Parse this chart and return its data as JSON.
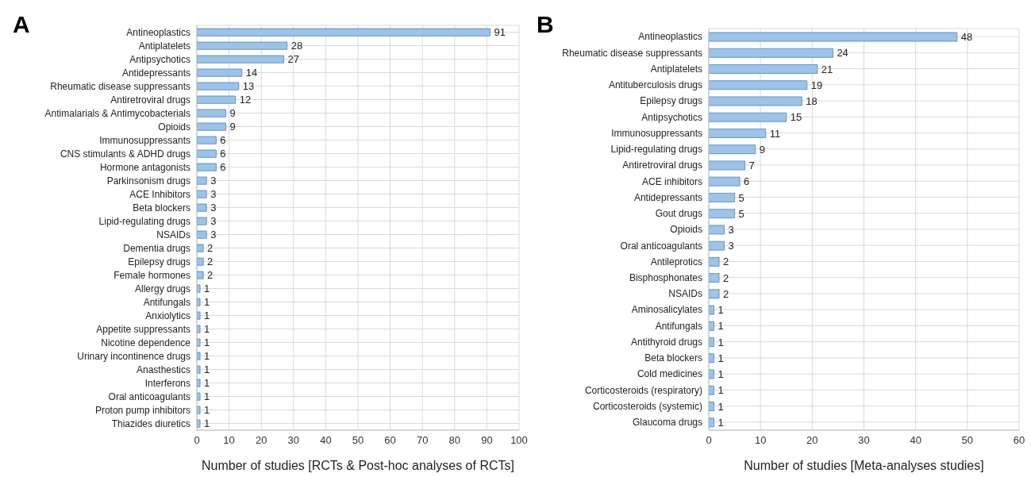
{
  "chart_data": [
    {
      "type": "bar",
      "title": "A",
      "orientation": "horizontal",
      "categories": [
        "Antineoplastics",
        "Antiplatelets",
        "Antipsychotics",
        "Antidepressants",
        "Rheumatic disease suppressants",
        "Antiretroviral drugs",
        "Antimalarials & Antimycobacterials",
        "Opioids",
        "Immunosuppressants",
        "CNS stimulants & ADHD drugs",
        "Hormone antagonists",
        "Parkinsonism drugs",
        "ACE Inhibitors",
        "Beta blockers",
        "Lipid-regulating drugs",
        "NSAIDs",
        "Dementia drugs",
        "Epilepsy drugs",
        "Female hormones",
        "Allergy drugs",
        "Antifungals",
        "Anxiolytics",
        "Appetite suppressants",
        "Nicotine dependence",
        "Urinary incontinence drugs",
        "Anasthestics",
        "Interferons",
        "Oral anticoagulants",
        "Proton pump inhibitors",
        "Thiazides diuretics"
      ],
      "values": [
        91,
        28,
        27,
        14,
        13,
        12,
        9,
        9,
        6,
        6,
        6,
        3,
        3,
        3,
        3,
        3,
        2,
        2,
        2,
        1,
        1,
        1,
        1,
        1,
        1,
        1,
        1,
        1,
        1,
        1
      ],
      "color": "#9dc3e6",
      "xlim": [
        0,
        100
      ],
      "xticks": [
        0,
        10,
        20,
        30,
        40,
        50,
        60,
        70,
        80,
        90,
        100
      ],
      "xlabel": "Number of studies [RCTs & Post-hoc analyses of RCTs]",
      "grid": true,
      "data_labels": true
    },
    {
      "type": "bar",
      "title": "B",
      "orientation": "horizontal",
      "categories": [
        "Antineoplastics",
        "Rheumatic disease suppressants",
        "Antiplatelets",
        "Antituberculosis drugs",
        "Epilepsy drugs",
        "Antipsychotics",
        "Immunosuppressants",
        "Lipid-regulating drugs",
        "Antiretroviral drugs",
        "ACE inhibitors",
        "Antidepressants",
        "Gout drugs",
        "Opioids",
        "Oral anticoagulants",
        "Antileprotics",
        "Bisphosphonates",
        "NSAIDs",
        "Aminosalicylates",
        "Antifungals",
        "Antithyroid drugs",
        "Beta blockers",
        "Cold medicines",
        "Corticosteroids (respiratory)",
        "Corticosteroids (systemic)",
        "Glaucoma drugs"
      ],
      "values": [
        48,
        24,
        21,
        19,
        18,
        15,
        11,
        9,
        7,
        6,
        5,
        5,
        3,
        3,
        2,
        2,
        2,
        1,
        1,
        1,
        1,
        1,
        1,
        1,
        1
      ],
      "color": "#9dc3e6",
      "xlim": [
        0,
        60
      ],
      "xticks": [
        0,
        10,
        20,
        30,
        40,
        50,
        60
      ],
      "xlabel": "Number of studies [Meta-analyses studies]",
      "grid": true,
      "data_labels": true
    }
  ]
}
